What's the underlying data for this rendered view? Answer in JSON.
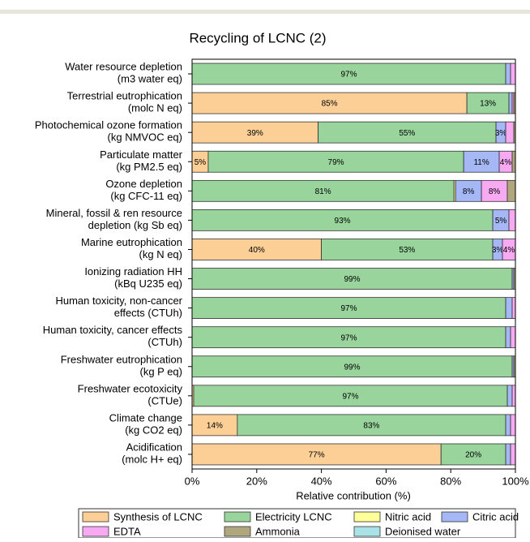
{
  "chart_data": {
    "type": "stacked_bar_horizontal",
    "title": "Recycling of LCNC (2)",
    "x_label": "Relative contribution (%)",
    "categories": [
      "Water resource depletion\n(m3 water eq)",
      "Terrestrial eutrophication\n(molc N eq)",
      "Photochemical ozone formation\n(kg NMVOC eq)",
      "Particulate matter\n(kg PM2.5 eq)",
      "Ozone depletion\n(kg CFC-11 eq)",
      "Mineral, fossil & ren resource\ndepletion (kg Sb eq)",
      "Marine eutrophication\n(kg N eq)",
      "Ionizing radiation HH\n(kBq U235 eq)",
      "Human toxicity, non-cancer\neffects (CTUh)",
      "Human toxicity, cancer effects\n(CTUh)",
      "Freshwater eutrophication\n(kg P eq)",
      "Freshwater ecotoxicity\n(CTUe)",
      "Climate change\n(kg CO2 eq)",
      "Acidification\n(molc H+ eq)"
    ],
    "series": [
      {
        "name": "Synthesis of LCNC",
        "color": "#fbcf96",
        "values": [
          0,
          85,
          39,
          5,
          0,
          0,
          40,
          0,
          0,
          0,
          0,
          0.5,
          14,
          77
        ],
        "value_labels": [
          null,
          "85%",
          "39%",
          "5%",
          null,
          null,
          "40%",
          null,
          null,
          null,
          null,
          null,
          "14%",
          "77%"
        ]
      },
      {
        "name": "Electricity LCNC",
        "color": "#99d49d",
        "values": [
          97,
          13,
          55,
          79,
          81,
          93,
          53,
          99,
          97,
          97,
          99,
          97,
          83,
          20
        ],
        "value_labels": [
          "97%",
          "13%",
          "55%",
          "79%",
          "81%",
          "93%",
          "53%",
          "99%",
          "97%",
          "97%",
          "99%",
          "97%",
          "83%",
          "20%"
        ]
      },
      {
        "name": "Nitric acid",
        "color": "#ffff99",
        "values": [
          0,
          0,
          0,
          0,
          0.5,
          0,
          0,
          0,
          0,
          0,
          0,
          0,
          0,
          0
        ]
      },
      {
        "name": "Citric acid",
        "color": "#a5b8f5",
        "values": [
          1.5,
          1,
          3,
          11,
          8,
          5,
          3,
          0.5,
          2,
          1.5,
          0.5,
          1.5,
          1.5,
          1.5
        ],
        "value_labels": [
          null,
          null,
          "3%",
          "11%",
          "8%",
          "5%",
          "3%",
          null,
          null,
          null,
          null,
          null,
          null,
          null
        ]
      },
      {
        "name": "EDTA",
        "color": "#f7a9f2",
        "values": [
          1.5,
          0.5,
          2.5,
          4,
          8,
          2,
          4,
          0,
          1,
          1.5,
          0,
          1,
          1.5,
          1.5
        ],
        "value_labels": [
          null,
          null,
          null,
          "4%",
          "8%",
          null,
          "4%",
          null,
          null,
          null,
          null,
          null,
          null,
          null
        ]
      },
      {
        "name": "Ammonia",
        "color": "#b1a77f",
        "values": [
          0,
          0.5,
          0.5,
          1,
          2.5,
          0,
          0,
          0.5,
          0,
          0,
          0.5,
          0,
          0,
          0
        ]
      },
      {
        "name": "Deionised water",
        "color": "#a9e3e8",
        "values": [
          0,
          0,
          0,
          0,
          0,
          0,
          0,
          0,
          0,
          0,
          0,
          0,
          0,
          0
        ]
      }
    ],
    "xlim": [
      0,
      100
    ],
    "xticks": [
      {
        "value": 0,
        "label": "0%"
      },
      {
        "value": 20,
        "label": "20%"
      },
      {
        "value": 40,
        "label": "40%"
      },
      {
        "value": 60,
        "label": "60%"
      },
      {
        "value": 80,
        "label": "80%"
      },
      {
        "value": 100,
        "label": "100%"
      }
    ]
  }
}
